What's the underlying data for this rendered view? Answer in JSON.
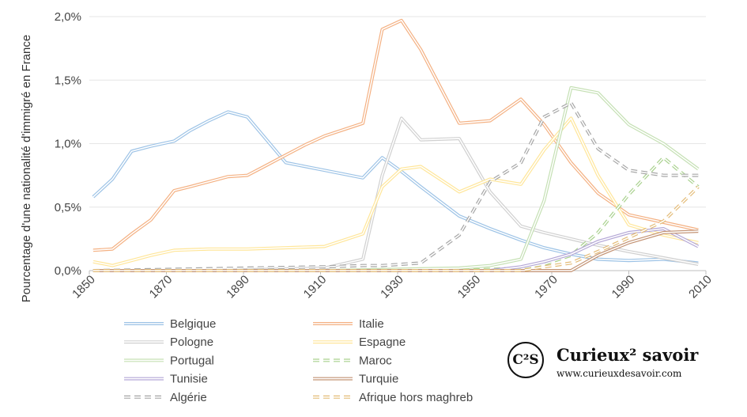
{
  "chart_data": {
    "type": "line",
    "title": "",
    "ylabel": "Pourcentage d'une nationalité d'immigré en France",
    "xlabel": "",
    "xlim": [
      1850,
      2010
    ],
    "ylim": [
      0,
      2.0
    ],
    "x_ticks": [
      "1850",
      "1870",
      "1890",
      "1910",
      "1930",
      "1950",
      "1970",
      "1990",
      "2010"
    ],
    "y_ticks": [
      "0,0%",
      "0,5%",
      "1,0%",
      "1,5%",
      "2,0%"
    ],
    "grid": "horizontal",
    "legend_position": "bottom",
    "series": [
      {
        "name": "Belgique",
        "color": "#9dc3e6",
        "dash": false,
        "x": [
          1851,
          1856,
          1861,
          1866,
          1872,
          1876,
          1881,
          1886,
          1891,
          1896,
          1901,
          1906,
          1911,
          1921,
          1926,
          1931,
          1936,
          1946,
          1954,
          1962,
          1968,
          1975,
          1982,
          1990,
          1999,
          2008
        ],
        "y": [
          0.58,
          0.72,
          0.94,
          0.98,
          1.02,
          1.1,
          1.18,
          1.25,
          1.21,
          1.03,
          0.85,
          0.82,
          0.79,
          0.73,
          0.89,
          0.78,
          0.66,
          0.43,
          0.33,
          0.24,
          0.18,
          0.13,
          0.09,
          0.08,
          0.09,
          0.06
        ]
      },
      {
        "name": "Italie",
        "color": "#f4b183",
        "dash": false,
        "x": [
          1851,
          1856,
          1861,
          1866,
          1872,
          1876,
          1881,
          1886,
          1891,
          1896,
          1901,
          1906,
          1911,
          1921,
          1926,
          1931,
          1936,
          1946,
          1954,
          1962,
          1968,
          1975,
          1982,
          1990,
          1999,
          2008
        ],
        "y": [
          0.16,
          0.17,
          0.29,
          0.4,
          0.63,
          0.66,
          0.7,
          0.74,
          0.75,
          0.83,
          0.91,
          0.99,
          1.06,
          1.16,
          1.9,
          1.97,
          1.74,
          1.16,
          1.18,
          1.35,
          1.15,
          0.85,
          0.61,
          0.44,
          0.38,
          0.32
        ]
      },
      {
        "name": "Pologne",
        "color": "#d0d0d0",
        "dash": false,
        "x": [
          1851,
          1881,
          1911,
          1921,
          1926,
          1931,
          1936,
          1946,
          1954,
          1962,
          1968,
          1975,
          1982,
          1990,
          1999,
          2008
        ],
        "y": [
          0.0,
          0.0,
          0.02,
          0.09,
          0.75,
          1.2,
          1.03,
          1.04,
          0.62,
          0.35,
          0.3,
          0.25,
          0.2,
          0.15,
          0.1,
          0.05
        ]
      },
      {
        "name": "Espagne",
        "color": "#ffe699",
        "dash": false,
        "x": [
          1851,
          1856,
          1861,
          1866,
          1872,
          1881,
          1891,
          1901,
          1911,
          1921,
          1926,
          1931,
          1936,
          1946,
          1954,
          1962,
          1968,
          1975,
          1982,
          1990,
          1999,
          2008
        ],
        "y": [
          0.07,
          0.04,
          0.08,
          0.12,
          0.16,
          0.17,
          0.17,
          0.18,
          0.19,
          0.29,
          0.66,
          0.8,
          0.82,
          0.62,
          0.72,
          0.68,
          0.95,
          1.2,
          0.75,
          0.36,
          0.28,
          0.22
        ]
      },
      {
        "name": "Portugal",
        "color": "#c5e0b4",
        "dash": false,
        "x": [
          1851,
          1911,
          1946,
          1954,
          1962,
          1968,
          1975,
          1982,
          1990,
          1999,
          2008
        ],
        "y": [
          0.0,
          0.0,
          0.02,
          0.04,
          0.09,
          0.55,
          1.44,
          1.4,
          1.15,
          1.0,
          0.8
        ]
      },
      {
        "name": "Maroc",
        "color": "#a9d18e",
        "dash": true,
        "x": [
          1851,
          1946,
          1954,
          1962,
          1968,
          1975,
          1982,
          1990,
          1999,
          2008
        ],
        "y": [
          0.0,
          0.0,
          0.01,
          0.02,
          0.05,
          0.12,
          0.3,
          0.6,
          0.89,
          0.66
        ]
      },
      {
        "name": "Tunisie",
        "color": "#b4a7d6",
        "dash": false,
        "x": [
          1851,
          1954,
          1962,
          1968,
          1975,
          1982,
          1990,
          1999,
          2008
        ],
        "y": [
          0.0,
          0.0,
          0.03,
          0.07,
          0.13,
          0.23,
          0.3,
          0.33,
          0.19
        ]
      },
      {
        "name": "Turquie",
        "color": "#c39374",
        "dash": false,
        "x": [
          1851,
          1954,
          1962,
          1968,
          1975,
          1982,
          1990,
          1999,
          2008
        ],
        "y": [
          0.0,
          0.0,
          0.0,
          0.0,
          0.0,
          0.12,
          0.22,
          0.3,
          0.31
        ]
      },
      {
        "name": "Algérie",
        "color": "#a6a6a6",
        "dash": true,
        "x": [
          1851,
          1911,
          1921,
          1926,
          1931,
          1936,
          1946,
          1954,
          1962,
          1968,
          1975,
          1982,
          1990,
          1999,
          2008
        ],
        "y": [
          0.0,
          0.03,
          0.04,
          0.04,
          0.05,
          0.06,
          0.28,
          0.7,
          0.85,
          1.21,
          1.32,
          0.96,
          0.79,
          0.75,
          0.75
        ]
      },
      {
        "name": "Afrique hors maghreb",
        "color": "#e3bb77",
        "dash": true,
        "x": [
          1851,
          1946,
          1962,
          1968,
          1975,
          1982,
          1990,
          1999,
          2008
        ],
        "y": [
          0.0,
          0.0,
          0.0,
          0.03,
          0.06,
          0.15,
          0.26,
          0.39,
          0.66
        ]
      }
    ]
  },
  "logo": {
    "title": "Curieux² savoir",
    "url": "www.curieuxdesavoir.com"
  }
}
